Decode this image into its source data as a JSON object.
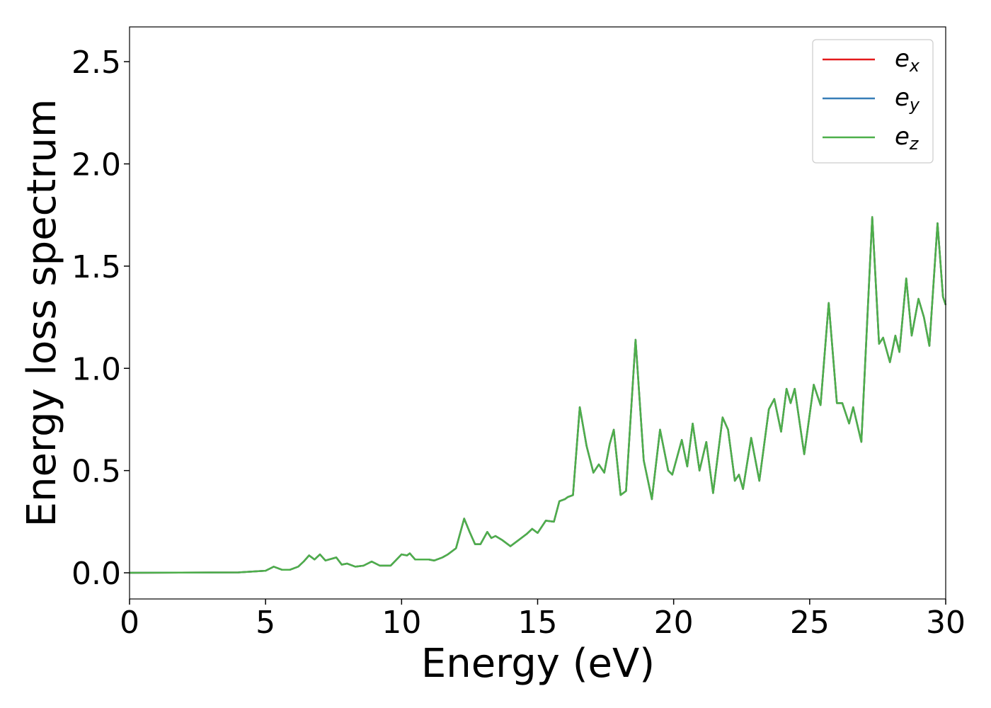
{
  "chart_data": {
    "type": "line",
    "xlabel": "Energy (eV)",
    "ylabel": "Energy loss spectrum",
    "x": [
      0,
      4,
      5,
      5.3,
      5.6,
      5.9,
      6.2,
      6.4,
      6.6,
      6.8,
      7.0,
      7.2,
      7.6,
      7.8,
      8.0,
      8.3,
      8.6,
      8.9,
      9.2,
      9.6,
      10.0,
      10.2,
      10.3,
      10.5,
      11.0,
      11.2,
      11.5,
      11.7,
      12.0,
      12.3,
      12.5,
      12.7,
      12.9,
      13.15,
      13.3,
      13.45,
      13.7,
      14.0,
      14.3,
      14.6,
      14.8,
      15.0,
      15.3,
      15.6,
      15.8,
      16.0,
      16.1,
      16.3,
      16.55,
      16.8,
      17.05,
      17.25,
      17.45,
      17.65,
      17.8,
      18.05,
      18.25,
      18.6,
      18.9,
      19.2,
      19.5,
      19.8,
      19.95,
      20.3,
      20.5,
      20.7,
      20.95,
      21.2,
      21.45,
      21.8,
      22.0,
      22.25,
      22.4,
      22.55,
      22.85,
      23.15,
      23.5,
      23.7,
      23.95,
      24.15,
      24.3,
      24.45,
      24.8,
      25.15,
      25.4,
      25.7,
      26.0,
      26.2,
      26.45,
      26.6,
      26.9,
      27.3,
      27.55,
      27.7,
      27.95,
      28.15,
      28.3,
      28.55,
      28.75,
      29.0,
      29.2,
      29.4,
      29.7,
      29.9,
      30
    ],
    "series": [
      {
        "name": "e_x",
        "color": "#e41a1c",
        "values": [
          0,
          0.002,
          0.01,
          0.03,
          0.015,
          0.015,
          0.03,
          0.055,
          0.085,
          0.065,
          0.09,
          0.06,
          0.075,
          0.04,
          0.045,
          0.03,
          0.035,
          0.055,
          0.035,
          0.035,
          0.09,
          0.085,
          0.095,
          0.065,
          0.065,
          0.06,
          0.075,
          0.09,
          0.12,
          0.265,
          0.2,
          0.14,
          0.14,
          0.2,
          0.17,
          0.18,
          0.16,
          0.13,
          0.16,
          0.19,
          0.215,
          0.195,
          0.255,
          0.25,
          0.35,
          0.36,
          0.37,
          0.38,
          0.81,
          0.62,
          0.49,
          0.53,
          0.49,
          0.63,
          0.7,
          0.38,
          0.4,
          1.14,
          0.55,
          0.36,
          0.7,
          0.5,
          0.48,
          0.65,
          0.52,
          0.73,
          0.5,
          0.64,
          0.39,
          0.76,
          0.7,
          0.45,
          0.48,
          0.41,
          0.66,
          0.45,
          0.8,
          0.85,
          0.69,
          0.9,
          0.83,
          0.9,
          0.58,
          0.92,
          0.82,
          1.32,
          0.83,
          0.83,
          0.73,
          0.81,
          0.64,
          1.74,
          1.12,
          1.15,
          1.03,
          1.16,
          1.08,
          1.44,
          1.16,
          1.34,
          1.25,
          1.11,
          1.71,
          1.35,
          1.31
        ]
      },
      {
        "name": "e_y",
        "color": "#377eb8",
        "values": [
          0,
          0.002,
          0.01,
          0.03,
          0.015,
          0.015,
          0.03,
          0.055,
          0.085,
          0.065,
          0.09,
          0.06,
          0.075,
          0.04,
          0.045,
          0.03,
          0.035,
          0.055,
          0.035,
          0.035,
          0.09,
          0.085,
          0.095,
          0.065,
          0.065,
          0.06,
          0.075,
          0.09,
          0.12,
          0.265,
          0.2,
          0.14,
          0.14,
          0.2,
          0.17,
          0.18,
          0.16,
          0.13,
          0.16,
          0.19,
          0.215,
          0.195,
          0.255,
          0.25,
          0.35,
          0.36,
          0.37,
          0.38,
          0.81,
          0.62,
          0.49,
          0.53,
          0.49,
          0.63,
          0.7,
          0.38,
          0.4,
          1.14,
          0.55,
          0.36,
          0.7,
          0.5,
          0.48,
          0.65,
          0.52,
          0.73,
          0.5,
          0.64,
          0.39,
          0.76,
          0.7,
          0.45,
          0.48,
          0.41,
          0.66,
          0.45,
          0.8,
          0.85,
          0.69,
          0.9,
          0.83,
          0.9,
          0.58,
          0.92,
          0.82,
          1.32,
          0.83,
          0.83,
          0.73,
          0.81,
          0.64,
          1.74,
          1.12,
          1.15,
          1.03,
          1.16,
          1.08,
          1.44,
          1.16,
          1.34,
          1.25,
          1.11,
          1.71,
          1.35,
          1.31
        ]
      },
      {
        "name": "e_z",
        "color": "#4daf4a",
        "values": [
          0,
          0.002,
          0.01,
          0.03,
          0.015,
          0.015,
          0.03,
          0.055,
          0.085,
          0.065,
          0.09,
          0.06,
          0.075,
          0.04,
          0.045,
          0.03,
          0.035,
          0.055,
          0.035,
          0.035,
          0.09,
          0.085,
          0.095,
          0.065,
          0.065,
          0.06,
          0.075,
          0.09,
          0.12,
          0.265,
          0.2,
          0.14,
          0.14,
          0.2,
          0.17,
          0.18,
          0.16,
          0.13,
          0.16,
          0.19,
          0.215,
          0.195,
          0.255,
          0.25,
          0.35,
          0.36,
          0.37,
          0.38,
          0.81,
          0.62,
          0.49,
          0.53,
          0.49,
          0.63,
          0.7,
          0.38,
          0.4,
          1.14,
          0.55,
          0.36,
          0.7,
          0.5,
          0.48,
          0.65,
          0.52,
          0.73,
          0.5,
          0.64,
          0.39,
          0.76,
          0.7,
          0.45,
          0.48,
          0.41,
          0.66,
          0.45,
          0.8,
          0.85,
          0.69,
          0.9,
          0.83,
          0.9,
          0.58,
          0.92,
          0.82,
          1.32,
          0.83,
          0.83,
          0.73,
          0.81,
          0.64,
          1.74,
          1.12,
          1.15,
          1.03,
          1.16,
          1.08,
          1.44,
          1.16,
          1.34,
          1.25,
          1.11,
          1.71,
          1.35,
          1.31
        ]
      }
    ],
    "xlim": [
      0,
      30
    ],
    "xticks": [
      0,
      5,
      10,
      15,
      20,
      25,
      30
    ],
    "ylim": [
      -0.128,
      2.67
    ],
    "yticks": [
      {
        "value": 0,
        "label": "0.0"
      },
      0.5,
      {
        "value": 1,
        "label": "1.0"
      },
      1.5,
      {
        "value": 2,
        "label": "2.0"
      },
      2.5
    ],
    "legend": "upper right",
    "grid": false
  }
}
